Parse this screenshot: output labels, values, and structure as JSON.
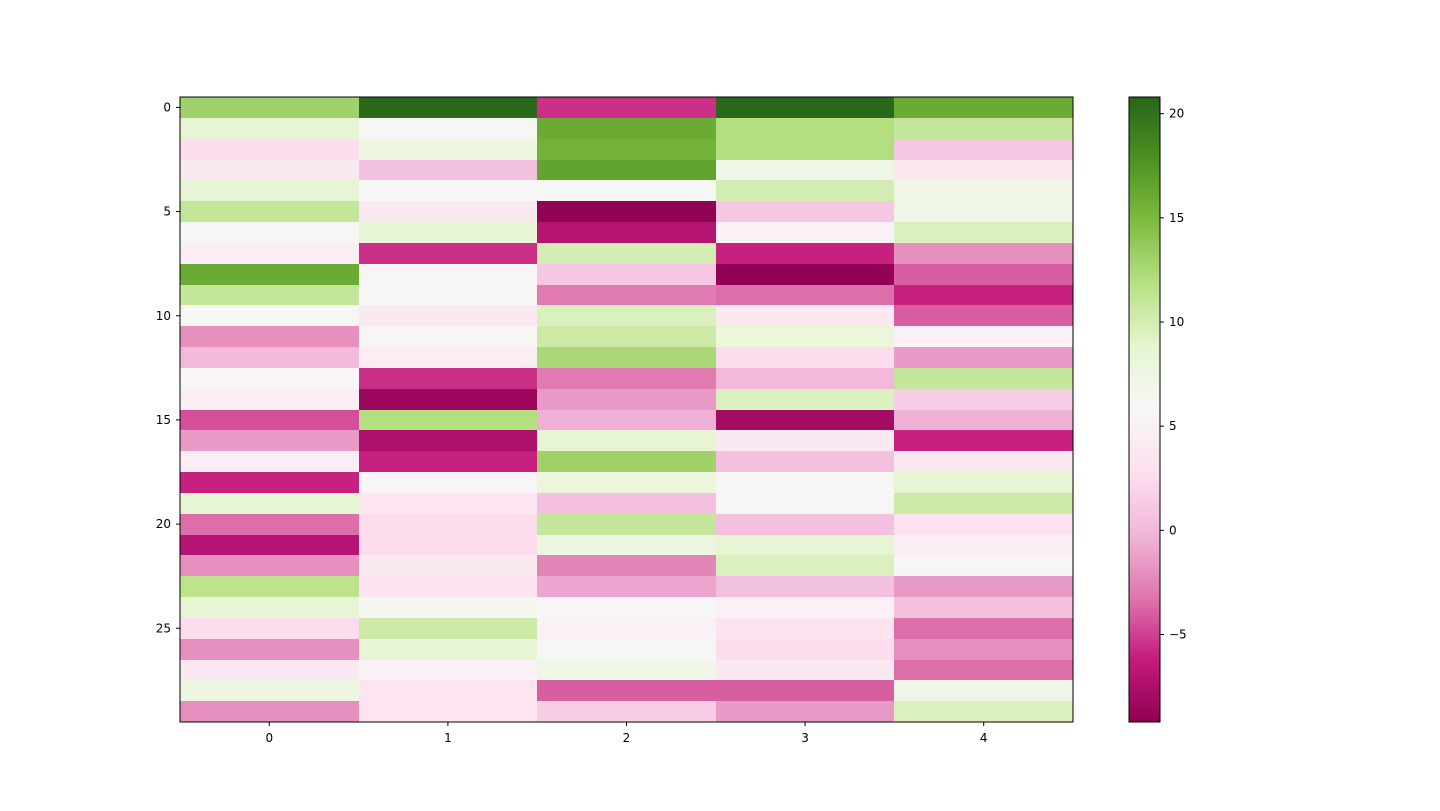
{
  "chart_data": {
    "type": "heatmap",
    "title": "",
    "xlabel": "",
    "ylabel": "",
    "colormap": "PiYG",
    "vmin": -9.2,
    "vmax": 20.8,
    "x_tick_labels": [
      "0",
      "1",
      "2",
      "3",
      "4"
    ],
    "y_tick_labels": [
      "0",
      "5",
      "10",
      "15",
      "20",
      "25"
    ],
    "y_tick_rows": [
      0,
      5,
      10,
      15,
      20,
      25
    ],
    "colorbar_tick_labels": [
      "20",
      "15",
      "10",
      "5",
      "0",
      "−5"
    ],
    "colorbar_ticks": [
      20,
      15,
      10,
      5,
      0,
      -5
    ],
    "values": [
      [
        13.0,
        20.5,
        -5.5,
        20.5,
        16.0
      ],
      [
        8.5,
        6.0,
        16.0,
        12.0,
        11.0
      ],
      [
        2.5,
        7.5,
        15.5,
        12.0,
        1.0
      ],
      [
        4.0,
        0.5,
        16.5,
        7.0,
        4.0
      ],
      [
        8.5,
        6.0,
        6.0,
        10.0,
        7.0
      ],
      [
        11.0,
        4.0,
        -9.0,
        1.0,
        7.0
      ],
      [
        6.0,
        8.5,
        -7.0,
        5.0,
        9.5
      ],
      [
        4.5,
        -5.5,
        10.0,
        -6.0,
        -2.0
      ],
      [
        16.0,
        6.0,
        1.0,
        -9.0,
        -4.0
      ],
      [
        11.0,
        6.0,
        -3.0,
        -3.5,
        -6.0
      ],
      [
        6.0,
        4.0,
        9.5,
        4.0,
        -4.0
      ],
      [
        -2.0,
        6.0,
        10.5,
        8.0,
        5.0
      ],
      [
        0.0,
        4.5,
        12.5,
        2.5,
        -1.5
      ],
      [
        5.5,
        -5.5,
        -3.0,
        0.0,
        11.0
      ],
      [
        4.5,
        -8.5,
        -1.5,
        9.5,
        1.5
      ],
      [
        -4.5,
        12.0,
        -0.5,
        -8.0,
        -0.5
      ],
      [
        -1.5,
        -7.5,
        8.5,
        4.0,
        -6.0
      ],
      [
        4.5,
        -6.0,
        13.0,
        0.5,
        4.0
      ],
      [
        -6.0,
        5.5,
        8.0,
        6.0,
        8.5
      ],
      [
        8.5,
        3.5,
        0.5,
        6.0,
        10.5
      ],
      [
        -3.5,
        2.5,
        11.0,
        0.5,
        3.0
      ],
      [
        -7.0,
        2.5,
        7.5,
        8.5,
        4.5
      ],
      [
        -2.0,
        4.0,
        -2.5,
        9.5,
        6.0
      ],
      [
        11.5,
        3.0,
        -1.0,
        0.5,
        -1.5
      ],
      [
        8.5,
        6.5,
        5.5,
        5.0,
        0.5
      ],
      [
        2.5,
        10.5,
        5.0,
        3.0,
        -3.5
      ],
      [
        -2.0,
        8.5,
        6.0,
        2.5,
        -2.0
      ],
      [
        4.0,
        5.0,
        7.0,
        4.0,
        -3.5
      ],
      [
        7.5,
        3.5,
        -4.0,
        -4.0,
        7.0
      ],
      [
        -2.0,
        3.5,
        1.5,
        -1.5,
        9.5
      ]
    ]
  }
}
